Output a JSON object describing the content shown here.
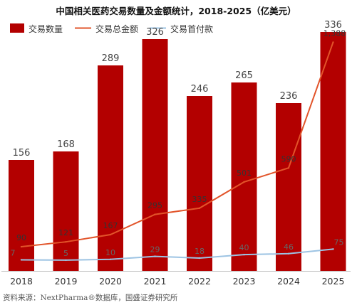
{
  "chart_data": {
    "type": "bar",
    "title": "中国相关医药交易数量及金额统计，2018-2025（亿美元）",
    "categories": [
      "2018",
      "2019",
      "2020",
      "2021",
      "2022",
      "2023",
      "2024",
      "2025"
    ],
    "series": [
      {
        "name": "交易数量",
        "type": "bar",
        "color": "#b30000",
        "values": [
          156,
          168,
          289,
          326,
          246,
          265,
          236,
          336
        ],
        "labels": [
          "156",
          "168",
          "289",
          "326",
          "246",
          "265",
          "236",
          "336"
        ]
      },
      {
        "name": "交易总金额",
        "type": "line",
        "color": "#e2542a",
        "values": [
          90,
          121,
          167,
          295,
          335,
          501,
          590,
          1388
        ],
        "labels": [
          "90",
          "121",
          "167",
          "295",
          "335",
          "501",
          "590",
          "1,388"
        ]
      },
      {
        "name": "交易首付款",
        "type": "line",
        "color": "#9cc3e3",
        "values": [
          7,
          5,
          10,
          29,
          18,
          40,
          46,
          75
        ],
        "labels": [
          "7",
          "5",
          "10",
          "29",
          "18",
          "40",
          "46",
          "75"
        ]
      }
    ],
    "grid": false,
    "legend": "top-left"
  },
  "source": "资料来源：NextPharma®数据库，国盛证券研究所"
}
